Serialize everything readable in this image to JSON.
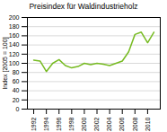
{
  "chart_data": {
    "type": "line",
    "title": "Preisindex für Waldindustrieholz",
    "ylabel": "Index [2005 = 100]",
    "x": [
      1992,
      1993,
      1994,
      1995,
      1996,
      1997,
      1998,
      1999,
      2000,
      2001,
      2002,
      2003,
      2004,
      2005,
      2006,
      2007,
      2008,
      2009,
      2010,
      2011
    ],
    "values": [
      107,
      105,
      82,
      100,
      108,
      95,
      90,
      93,
      100,
      97,
      100,
      98,
      95,
      100,
      105,
      125,
      163,
      168,
      145,
      168
    ],
    "color": "#77bb22",
    "xlim": [
      1991,
      2012
    ],
    "xticks": [
      1992,
      1994,
      1996,
      1998,
      2000,
      2002,
      2004,
      2006,
      2008,
      2010
    ],
    "ylim": [
      0,
      200
    ],
    "yticks": [
      0,
      20,
      40,
      60,
      80,
      100,
      120,
      140,
      160,
      180,
      200
    ],
    "grid": "y"
  }
}
